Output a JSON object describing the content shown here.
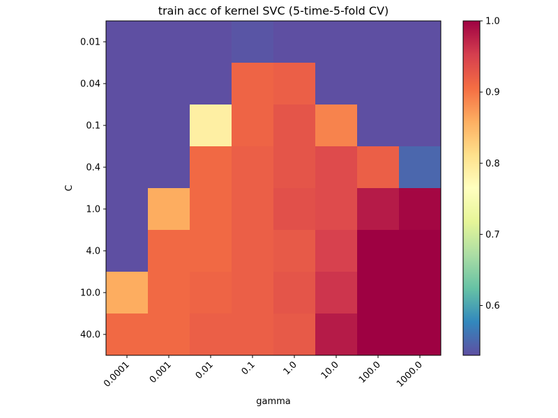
{
  "chart_data": {
    "type": "heatmap",
    "title": "train acc of kernel SVC (5-time-5-fold CV)",
    "xlabel": "gamma",
    "ylabel": "C",
    "x_categories": [
      "0.0001",
      "0.001",
      "0.01",
      "0.1",
      "1.0",
      "10.0",
      "100.0",
      "1000.0"
    ],
    "y_categories": [
      "0.01",
      "0.04",
      "0.1",
      "0.4",
      "1.0",
      "4.0",
      "10.0",
      "40.0"
    ],
    "values": [
      [
        0.53,
        0.53,
        0.53,
        0.535,
        0.53,
        0.53,
        0.53,
        0.53
      ],
      [
        0.53,
        0.53,
        0.53,
        0.915,
        0.92,
        0.53,
        0.53,
        0.53
      ],
      [
        0.53,
        0.53,
        0.79,
        0.915,
        0.93,
        0.89,
        0.53,
        0.53
      ],
      [
        0.53,
        0.53,
        0.91,
        0.92,
        0.93,
        0.94,
        0.92,
        0.55
      ],
      [
        0.53,
        0.86,
        0.91,
        0.92,
        0.935,
        0.94,
        0.98,
        0.995
      ],
      [
        0.53,
        0.91,
        0.91,
        0.92,
        0.925,
        0.95,
        1.0,
        1.0
      ],
      [
        0.86,
        0.91,
        0.915,
        0.92,
        0.93,
        0.96,
        1.0,
        1.0
      ],
      [
        0.91,
        0.91,
        0.92,
        0.92,
        0.925,
        0.98,
        1.0,
        1.0
      ]
    ],
    "vmin": 0.53,
    "vmax": 1.0,
    "colormap": "Spectral_r",
    "colorbar_ticks": [
      "0.6",
      "0.7",
      "0.8",
      "0.9",
      "1.0"
    ],
    "grid": false,
    "legend": "colorbar-right"
  }
}
